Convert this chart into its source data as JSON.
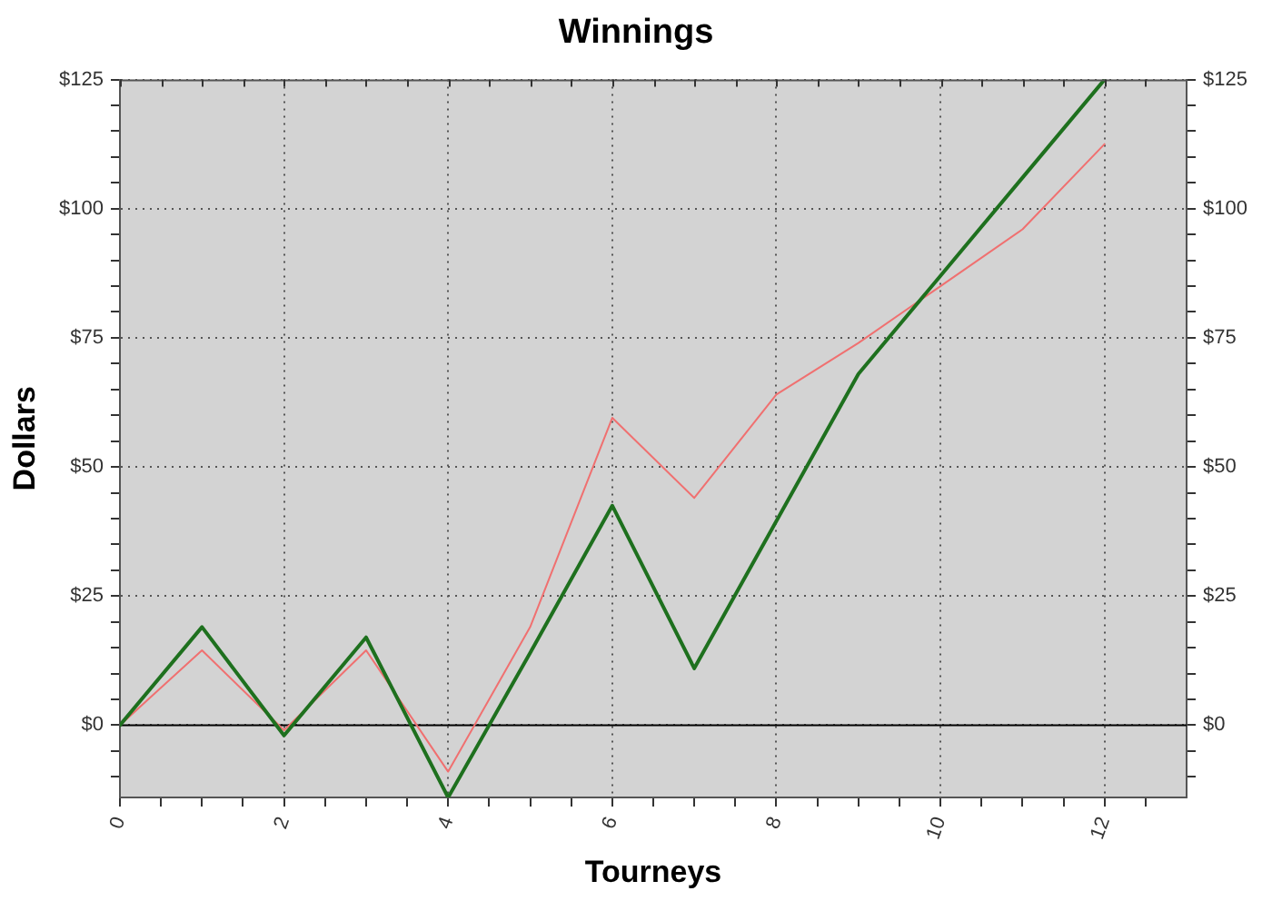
{
  "chart_data": {
    "type": "line",
    "title": "Winnings",
    "xlabel": "Tourneys",
    "ylabel": "Dollars",
    "x": [
      0,
      1,
      2,
      3,
      4,
      5,
      6,
      7,
      8,
      9,
      10,
      11,
      12
    ],
    "series": [
      {
        "color": "#1e701e",
        "values": [
          0,
          19,
          -2,
          17,
          -14,
          14,
          42.5,
          11,
          39.5,
          68,
          87,
          106,
          125
        ]
      },
      {
        "color": "#f07070",
        "values": [
          0,
          14.5,
          -1,
          14.5,
          -9,
          19,
          59.5,
          44,
          64,
          74,
          85,
          96,
          112.5
        ]
      }
    ],
    "xlim": [
      0,
      13
    ],
    "xticks": [
      0,
      {
        "value": 0.5,
        "label": null
      },
      {
        "value": 1,
        "label": null
      },
      {
        "value": 1.5,
        "label": null
      },
      2,
      {
        "value": 2.5,
        "label": null
      },
      {
        "value": 3,
        "label": null
      },
      {
        "value": 3.5,
        "label": null
      },
      4,
      {
        "value": 4.5,
        "label": null
      },
      {
        "value": 5,
        "label": null
      },
      {
        "value": 5.5,
        "label": null
      },
      6,
      {
        "value": 6.5,
        "label": null
      },
      {
        "value": 7,
        "label": null
      },
      {
        "value": 7.5,
        "label": null
      },
      8,
      {
        "value": 8.5,
        "label": null
      },
      {
        "value": 9,
        "label": null
      },
      {
        "value": 9.5,
        "label": null
      },
      10,
      {
        "value": 10.5,
        "label": null
      },
      {
        "value": 11,
        "label": null
      },
      {
        "value": 11.5,
        "label": null
      },
      12,
      {
        "value": 12.5,
        "label": null
      }
    ],
    "ylim": [
      -14,
      125
    ],
    "yticks": [
      {
        "value": -10,
        "label": null
      },
      {
        "value": -5,
        "label": null
      },
      {
        "value": 0,
        "label": "$0"
      },
      {
        "value": 5,
        "label": null
      },
      {
        "value": 10,
        "label": null
      },
      {
        "value": 15,
        "label": null
      },
      {
        "value": 20,
        "label": null
      },
      {
        "value": 25,
        "label": "$25"
      },
      {
        "value": 30,
        "label": null
      },
      {
        "value": 35,
        "label": null
      },
      {
        "value": 40,
        "label": null
      },
      {
        "value": 45,
        "label": null
      },
      {
        "value": 50,
        "label": "$50"
      },
      {
        "value": 55,
        "label": null
      },
      {
        "value": 60,
        "label": null
      },
      {
        "value": 65,
        "label": null
      },
      {
        "value": 70,
        "label": null
      },
      {
        "value": 75,
        "label": "$75"
      },
      {
        "value": 80,
        "label": null
      },
      {
        "value": 85,
        "label": null
      },
      {
        "value": 90,
        "label": null
      },
      {
        "value": 95,
        "label": null
      },
      {
        "value": 100,
        "label": "$100"
      },
      {
        "value": 105,
        "label": null
      },
      {
        "value": 110,
        "label": null
      },
      {
        "value": 115,
        "label": null
      },
      {
        "value": 120,
        "label": null
      },
      {
        "value": 125,
        "label": "$125"
      }
    ],
    "y2lim": [
      -14,
      125
    ],
    "y2ticks": [
      {
        "value": -10,
        "label": null
      },
      {
        "value": -5,
        "label": null
      },
      {
        "value": 0,
        "label": "$0"
      },
      {
        "value": 5,
        "label": null
      },
      {
        "value": 10,
        "label": null
      },
      {
        "value": 15,
        "label": null
      },
      {
        "value": 20,
        "label": null
      },
      {
        "value": 25,
        "label": "$25"
      },
      {
        "value": 30,
        "label": null
      },
      {
        "value": 35,
        "label": null
      },
      {
        "value": 40,
        "label": null
      },
      {
        "value": 45,
        "label": null
      },
      {
        "value": 50,
        "label": "$50"
      },
      {
        "value": 55,
        "label": null
      },
      {
        "value": 60,
        "label": null
      },
      {
        "value": 65,
        "label": null
      },
      {
        "value": 70,
        "label": null
      },
      {
        "value": 75,
        "label": "$75"
      },
      {
        "value": 80,
        "label": null
      },
      {
        "value": 85,
        "label": null
      },
      {
        "value": 90,
        "label": null
      },
      {
        "value": 95,
        "label": null
      },
      {
        "value": 100,
        "label": "$100"
      },
      {
        "value": 105,
        "label": null
      },
      {
        "value": 110,
        "label": null
      },
      {
        "value": 115,
        "label": null
      },
      {
        "value": 120,
        "label": null
      },
      {
        "value": 125,
        "label": "$125"
      }
    ],
    "grid": true,
    "ref_lines": [
      {
        "axis": "y",
        "value": 0,
        "color": "#000000"
      }
    ]
  }
}
